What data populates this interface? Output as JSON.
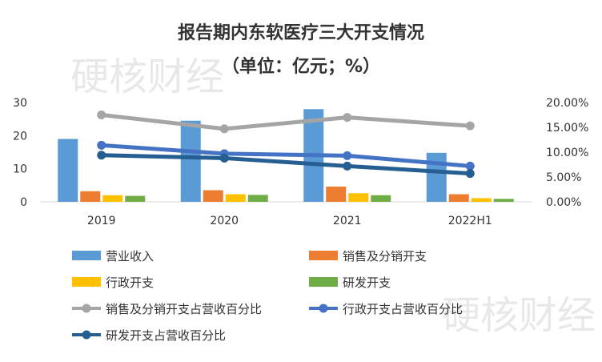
{
  "title": "报告期内东软医疗三大开支情况",
  "subtitle": "（单位：亿元；%）",
  "watermark": "硬核财经",
  "chart_data": {
    "type": "bar",
    "categories": [
      "2019",
      "2020",
      "2021",
      "2022H1"
    ],
    "series": [
      {
        "name": "营业收入",
        "type": "bar",
        "axis": "left",
        "color": "#5B9BD5",
        "values": [
          19.0,
          24.5,
          28.0,
          14.8
        ]
      },
      {
        "name": "销售及分销开支",
        "type": "bar",
        "axis": "left",
        "color": "#ED7D31",
        "values": [
          3.2,
          3.5,
          4.6,
          2.3
        ]
      },
      {
        "name": "行政开支",
        "type": "bar",
        "axis": "left",
        "color": "#FFC000",
        "values": [
          2.0,
          2.3,
          2.6,
          1.1
        ]
      },
      {
        "name": "研发开支",
        "type": "bar",
        "axis": "left",
        "color": "#70AD47",
        "values": [
          1.8,
          2.1,
          2.0,
          0.9
        ]
      },
      {
        "name": "销售及分销开支占营收百分比",
        "type": "line",
        "axis": "right",
        "color": "#A5A5A5",
        "values": [
          17.5,
          14.7,
          17.0,
          15.3
        ]
      },
      {
        "name": "行政开支占营收百分比",
        "type": "line",
        "axis": "right",
        "color": "#4472C4",
        "values": [
          11.4,
          9.7,
          9.3,
          7.2
        ]
      },
      {
        "name": "研发开支占营收百分比",
        "type": "line",
        "axis": "right",
        "color": "#255E91",
        "values": [
          9.4,
          8.8,
          7.2,
          5.7
        ]
      }
    ],
    "yleft": {
      "min": 0,
      "max": 30,
      "ticks": [
        "0",
        "10",
        "20",
        "30"
      ]
    },
    "yright": {
      "min": 0,
      "max": 20,
      "ticks": [
        "0.00%",
        "5.00%",
        "10.00%",
        "15.00%",
        "20.00%"
      ]
    },
    "legend_position": "bottom",
    "grid": false
  }
}
